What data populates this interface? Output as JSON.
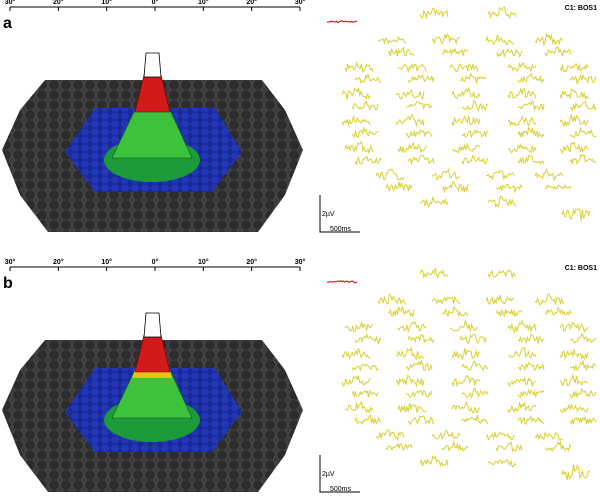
{
  "panels": [
    {
      "label": "a",
      "axis_ticks": [
        "30°",
        "20°",
        "10°",
        "0°",
        "10°",
        "20°",
        "30°"
      ],
      "trace_label": "C1: BOS1",
      "scale_amplitude": "2µV",
      "scale_time": "500ms"
    },
    {
      "label": "b",
      "axis_ticks": [
        "30°",
        "20°",
        "10°",
        "0°",
        "10°",
        "20°",
        "30°"
      ],
      "trace_label": "C1: BOS1",
      "scale_amplitude": "2µV",
      "scale_time": "500ms"
    }
  ]
}
